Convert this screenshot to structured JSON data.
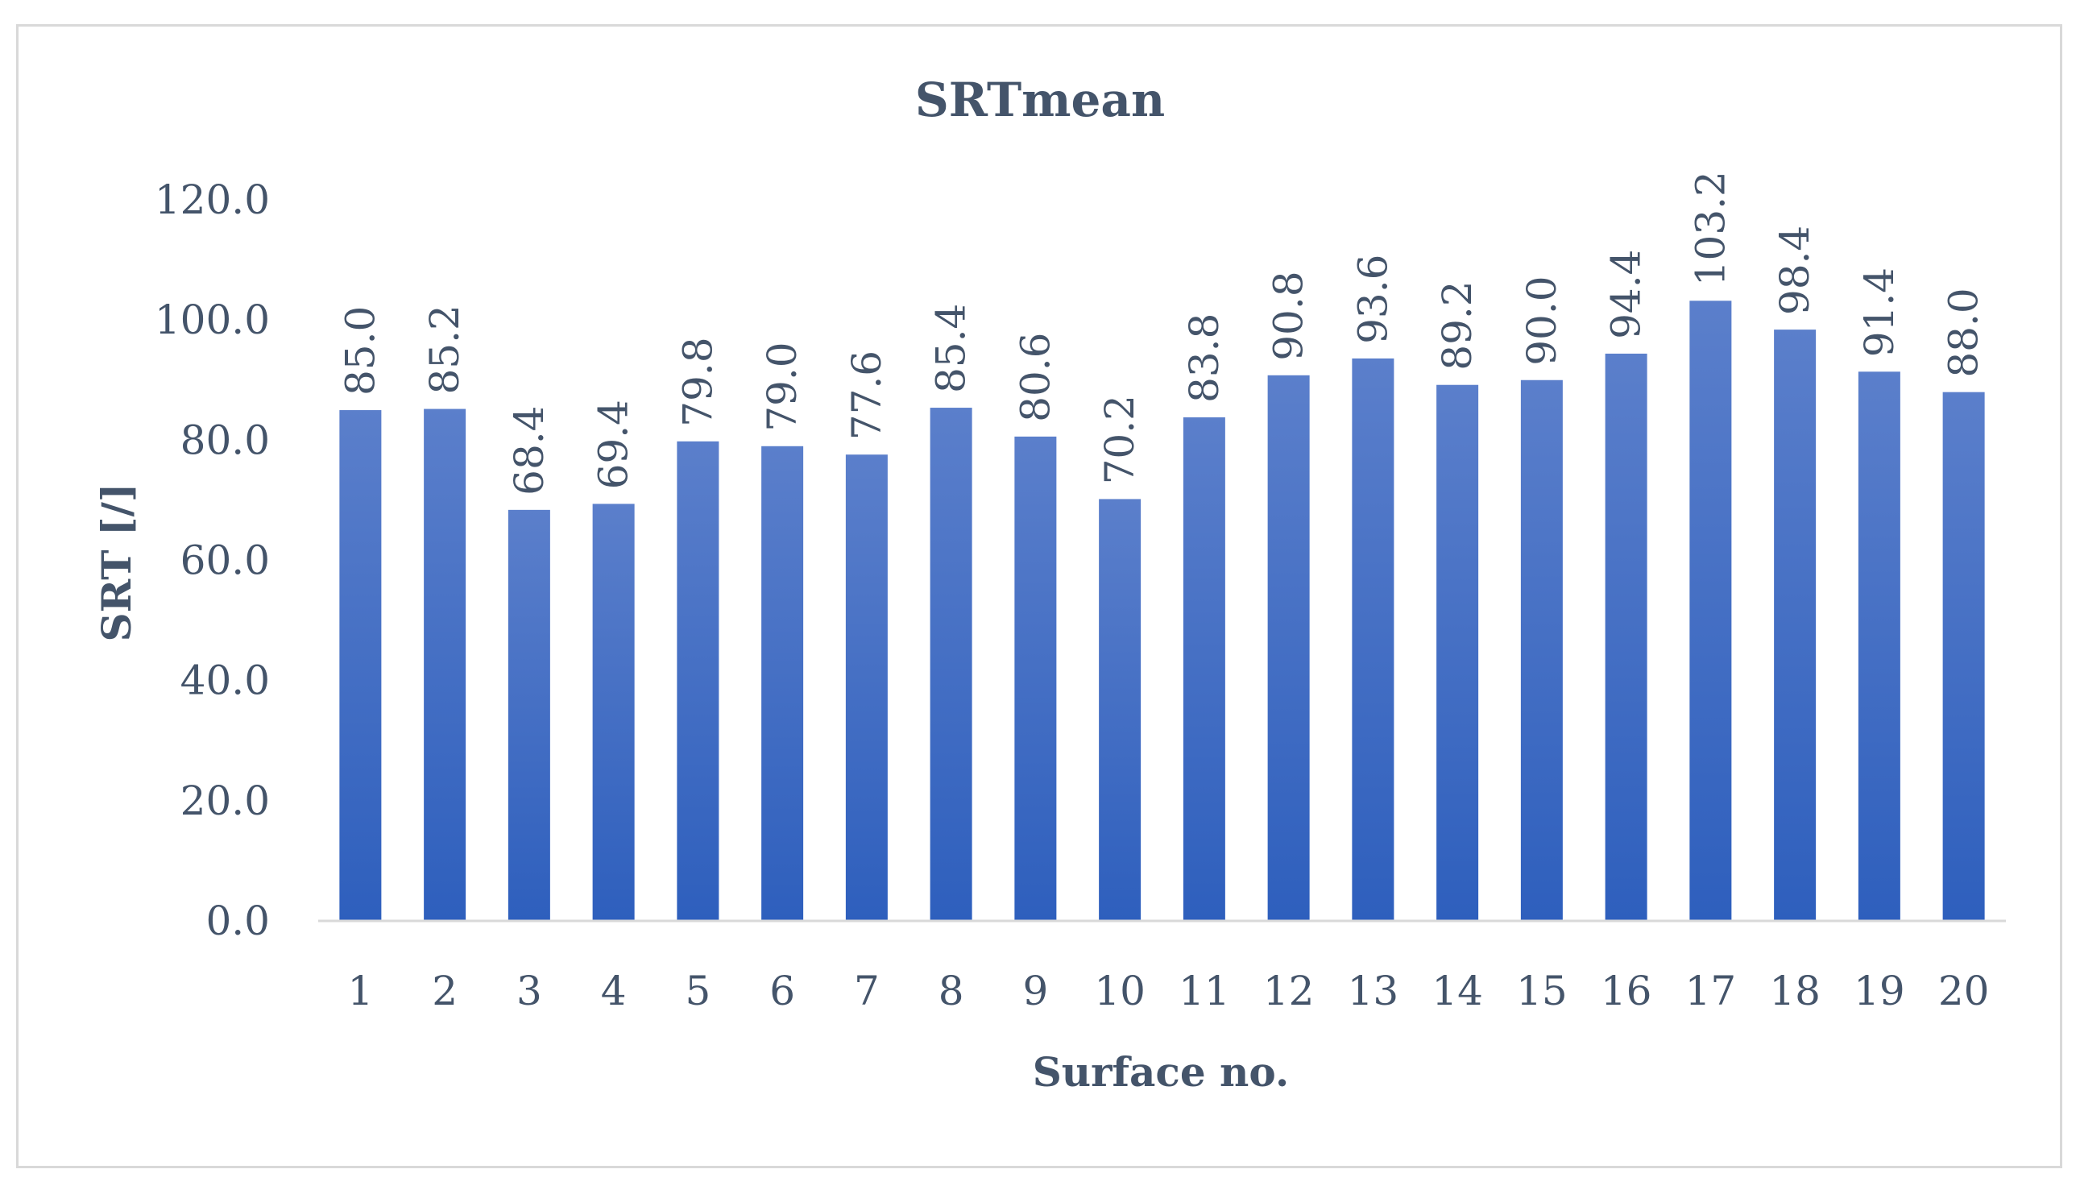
{
  "chart_data": {
    "type": "bar",
    "title": "SRTmean",
    "xlabel": "Surface no.",
    "ylabel": "SRT [/]",
    "categories": [
      "1",
      "2",
      "3",
      "4",
      "5",
      "6",
      "7",
      "8",
      "9",
      "10",
      "11",
      "12",
      "13",
      "14",
      "15",
      "16",
      "17",
      "18",
      "19",
      "20"
    ],
    "values": [
      85.0,
      85.2,
      68.4,
      69.4,
      79.8,
      79.0,
      77.6,
      85.4,
      80.6,
      70.2,
      83.8,
      90.8,
      93.6,
      89.2,
      90.0,
      94.4,
      103.2,
      98.4,
      91.4,
      88.0
    ],
    "data_labels": [
      "85.0",
      "85.2",
      "68.4",
      "69.4",
      "79.8",
      "79.0",
      "77.6",
      "85.4",
      "80.6",
      "70.2",
      "83.8",
      "90.8",
      "93.6",
      "89.2",
      "90.0",
      "94.4",
      "103.2",
      "98.4",
      "91.4",
      "88.0"
    ],
    "yticks": [
      "0.0",
      "20.0",
      "40.0",
      "60.0",
      "80.0",
      "100.0",
      "120.0"
    ],
    "ylim": [
      0,
      120
    ],
    "grid": false,
    "legend": "none",
    "colors": {
      "bar_top": "#5b7fcb",
      "bar_bottom": "#2e5fbd",
      "text": "#44546a",
      "axis": "#d9d9d9",
      "frame": "#d9d9d9"
    }
  }
}
